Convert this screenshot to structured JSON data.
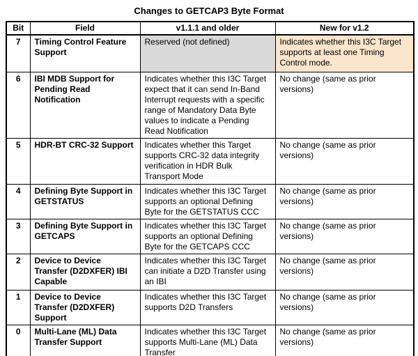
{
  "page": {
    "title": "Changes to GETCAP3 Byte Format"
  },
  "table": {
    "headers": [
      "Bit",
      "Field",
      "v1.1.1 and older",
      "New for v1.2"
    ],
    "colors": {
      "reserved_cell_bg": "#d9d9d9",
      "highlight_cell_bg": "#fce5cd",
      "border": "#000000",
      "text": "#000000"
    },
    "rows": [
      {
        "bit": "7",
        "field": "Timing Control Feature Support",
        "old": "Reserved (not defined)",
        "old_bg": "#d9d9d9",
        "new": "Indicates whether this I3C Target supports at least one Timing Control mode.",
        "new_bg": "#fce5cd"
      },
      {
        "bit": "6",
        "field": "IBI MDB Support for Pending Read Notification",
        "old": "Indicates whether this I3C Target expect that it can send In-Band Interrupt requests with a specific range of Mandatory Data Byte values to indicate a Pending Read Notification",
        "old_bg": "",
        "new": "No change (same as prior versions)",
        "new_bg": ""
      },
      {
        "bit": "5",
        "field": "HDR-BT CRC-32 Support",
        "old": "Indicates whether this Target supports CRC-32 data integrity verification in HDR Bulk Transport Mode",
        "old_bg": "",
        "new": "No change (same as prior versions)",
        "new_bg": ""
      },
      {
        "bit": "4",
        "field": "Defining Byte Support in GETSTATUS",
        "old": "Indicates whether this I3C Target supports an optional Defining Byte for the GETSTATUS CCC",
        "old_bg": "",
        "new": "No change (same as prior versions)",
        "new_bg": ""
      },
      {
        "bit": "3",
        "field": "Defining Byte Support in GETCAPS",
        "old": "Indicates whether this I3C Target supports an optional Defining Byte for the GETCAPS CCC",
        "old_bg": "",
        "new": "No change (same as prior versions)",
        "new_bg": ""
      },
      {
        "bit": "2",
        "field": "Device to Device Transfer (D2DXFER) IBI Capable",
        "old": "Indicates whether this I3C Target can initiate a D2D Transfer using an IBI",
        "old_bg": "",
        "new": "No change (same as prior versions)",
        "new_bg": ""
      },
      {
        "bit": "1",
        "field": "Device to Device Transfer (D2DXFER) Support",
        "old": "Indicates whether this I3C Target supports D2D Transfers",
        "old_bg": "",
        "new": "No change (same as prior versions)",
        "new_bg": ""
      },
      {
        "bit": "0",
        "field": "Multi-Lane (ML) Data Transfer Support",
        "old": "Indicates whether this I3C Target supports Multi-Lane (ML) Data Transfer",
        "old_bg": "",
        "new": "No change (same as prior versions)",
        "new_bg": ""
      }
    ]
  }
}
